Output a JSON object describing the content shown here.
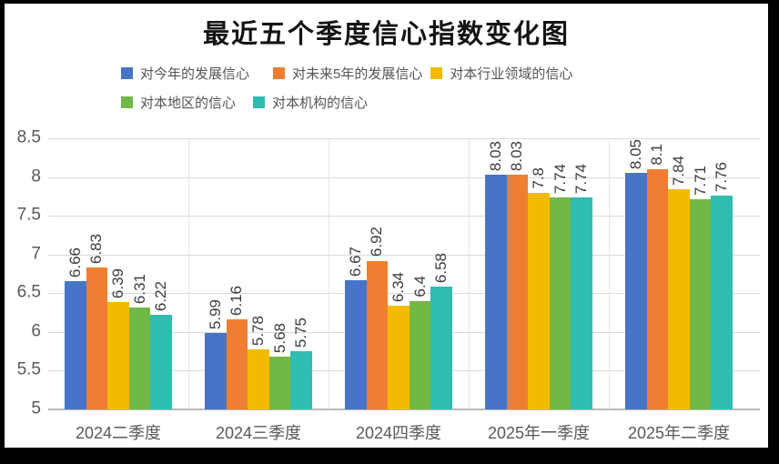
{
  "frame": {
    "border_color": "#000000",
    "panel_color": "#ffffff"
  },
  "chart_data": {
    "type": "bar",
    "title": "最近五个季度信心指数变化图",
    "categories": [
      "2024二季度",
      "2024三季度",
      "2024四季度",
      "2025年一季度",
      "2025年二季度"
    ],
    "series": [
      {
        "name": "对今年的发展信心",
        "color": "#4674C8",
        "values": [
          6.66,
          5.99,
          6.67,
          8.03,
          8.05
        ]
      },
      {
        "name": "对未来5年的发展信心",
        "color": "#EE7E32",
        "values": [
          6.83,
          6.16,
          6.92,
          8.03,
          8.1
        ]
      },
      {
        "name": "对本行业领域的信心",
        "color": "#F3BB00",
        "values": [
          6.39,
          5.78,
          6.34,
          7.8,
          7.84
        ]
      },
      {
        "name": "对本地区的信心",
        "color": "#72B847",
        "values": [
          6.31,
          5.68,
          6.4,
          7.74,
          7.71
        ]
      },
      {
        "name": "对本机构的信心",
        "color": "#2FBDB2",
        "values": [
          6.22,
          5.75,
          6.58,
          7.74,
          7.76
        ]
      }
    ],
    "legend_rows": [
      [
        0,
        1,
        2
      ],
      [
        3,
        4
      ]
    ],
    "legend_position": "top",
    "ylim": [
      5,
      8.5
    ],
    "yticks": [
      "8.5",
      "8",
      "7.5",
      "7",
      "6.5",
      "6",
      "5.5",
      "5"
    ],
    "grid": true,
    "value_labels": "rotated-90-above-bars",
    "axis_text_color": "#595959",
    "gridline_color": "#DADADA"
  }
}
